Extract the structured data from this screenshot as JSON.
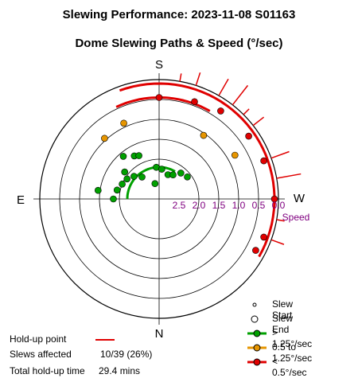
{
  "title": "Slewing Performance: 2023-11-08 S01163",
  "subtitle": "Dome Slewing Paths & Speed (°/sec)",
  "colors": {
    "fast": "#00a000",
    "medium": "#e69500",
    "slow": "#e00000",
    "ring": "#000000",
    "speed_label": "#800080"
  },
  "chart_data": {
    "type": "polar-scatter",
    "title": "Dome Slewing Paths & Speed (°/sec)",
    "radial_axis_label": "Speed",
    "radial_axis": {
      "range": [
        0,
        3.0
      ],
      "direction": "speed decreases outward",
      "ticks": [
        2.5,
        2.0,
        1.5,
        1.0,
        0.5,
        0.0
      ],
      "tick_labels": [
        "2.5",
        "2.0",
        "1.5",
        "1.0",
        "0.5",
        "0.0"
      ]
    },
    "compass": {
      "top": "S",
      "bottom": "N",
      "left": "E",
      "right": "W"
    },
    "series": [
      {
        "name": "> 1.25°/sec",
        "color": "#00a000",
        "points": [
          {
            "az": 270.0,
            "speed": 1.85
          },
          {
            "az": 258.0,
            "speed": 1.92
          },
          {
            "az": 248.0,
            "speed": 2.0
          },
          {
            "az": 238.0,
            "speed": 2.05
          },
          {
            "az": 228.0,
            "speed": 2.15
          },
          {
            "az": 218.0,
            "speed": 2.3
          },
          {
            "az": 195.0,
            "speed": 2.6
          },
          {
            "az": 185.0,
            "speed": 2.2
          },
          {
            "az": 175.0,
            "speed": 2.25
          },
          {
            "az": 160.0,
            "speed": 2.35
          },
          {
            "az": 150.0,
            "speed": 2.3
          },
          {
            "az": 140.0,
            "speed": 2.15
          },
          {
            "az": 128.0,
            "speed": 2.1
          },
          {
            "az": 210.0,
            "speed": 1.75
          },
          {
            "az": 205.0,
            "speed": 1.8
          },
          {
            "az": 262.0,
            "speed": 1.45
          },
          {
            "az": 220.0,
            "speed": 1.6
          },
          {
            "az": 232.0,
            "speed": 1.9
          }
        ]
      },
      {
        "name": "0.5 to 1.25°/sec",
        "color": "#e69500",
        "points": [
          {
            "az": 145.0,
            "speed": 1.05
          },
          {
            "az": 120.0,
            "speed": 0.8
          },
          {
            "az": 205.0,
            "speed": 0.9
          },
          {
            "az": 222.0,
            "speed": 0.95
          }
        ]
      },
      {
        "name": "< 0.5°/sec",
        "color": "#e00000",
        "points": [
          {
            "az": 180.0,
            "speed": 0.45
          },
          {
            "az": 160.0,
            "speed": 0.4
          },
          {
            "az": 145.0,
            "speed": 0.3
          },
          {
            "az": 125.0,
            "speed": 0.25
          },
          {
            "az": 110.0,
            "speed": 0.2
          },
          {
            "az": 90.0,
            "speed": 0.1
          },
          {
            "az": 70.0,
            "speed": 0.2
          },
          {
            "az": 62.0,
            "speed": 0.25
          }
        ]
      }
    ],
    "paths": [
      {
        "speed_class": "slow",
        "from_az": 60.0,
        "to_az": 200.0,
        "speed": 0.1
      },
      {
        "speed_class": "slow",
        "from_az": 150.0,
        "to_az": 205.0,
        "speed": 0.45
      },
      {
        "speed_class": "fast",
        "from_az": 150.0,
        "to_az": 270.0,
        "speed": 2.2
      }
    ],
    "holdups": [
      {
        "az": 170.0
      },
      {
        "az": 162.0
      },
      {
        "az": 150.0
      },
      {
        "az": 142.0
      },
      {
        "az": 135.0
      },
      {
        "az": 128.0
      },
      {
        "az": 110.0
      },
      {
        "az": 100.0
      },
      {
        "az": 80.0
      },
      {
        "az": 70.0
      }
    ]
  },
  "info": {
    "holdup_label": "Hold-up point",
    "slews_label": "Slews affected",
    "slews_value": "10/39 (26%)",
    "total_label": "Total hold-up time",
    "total_value": "29.4 mins"
  },
  "legend": {
    "start": "Slew Start",
    "end": "Slew End",
    "fast": "> 1.25°/sec",
    "medium": "0.5 to 1.25°/sec",
    "slow": "< 0.5°/sec"
  }
}
